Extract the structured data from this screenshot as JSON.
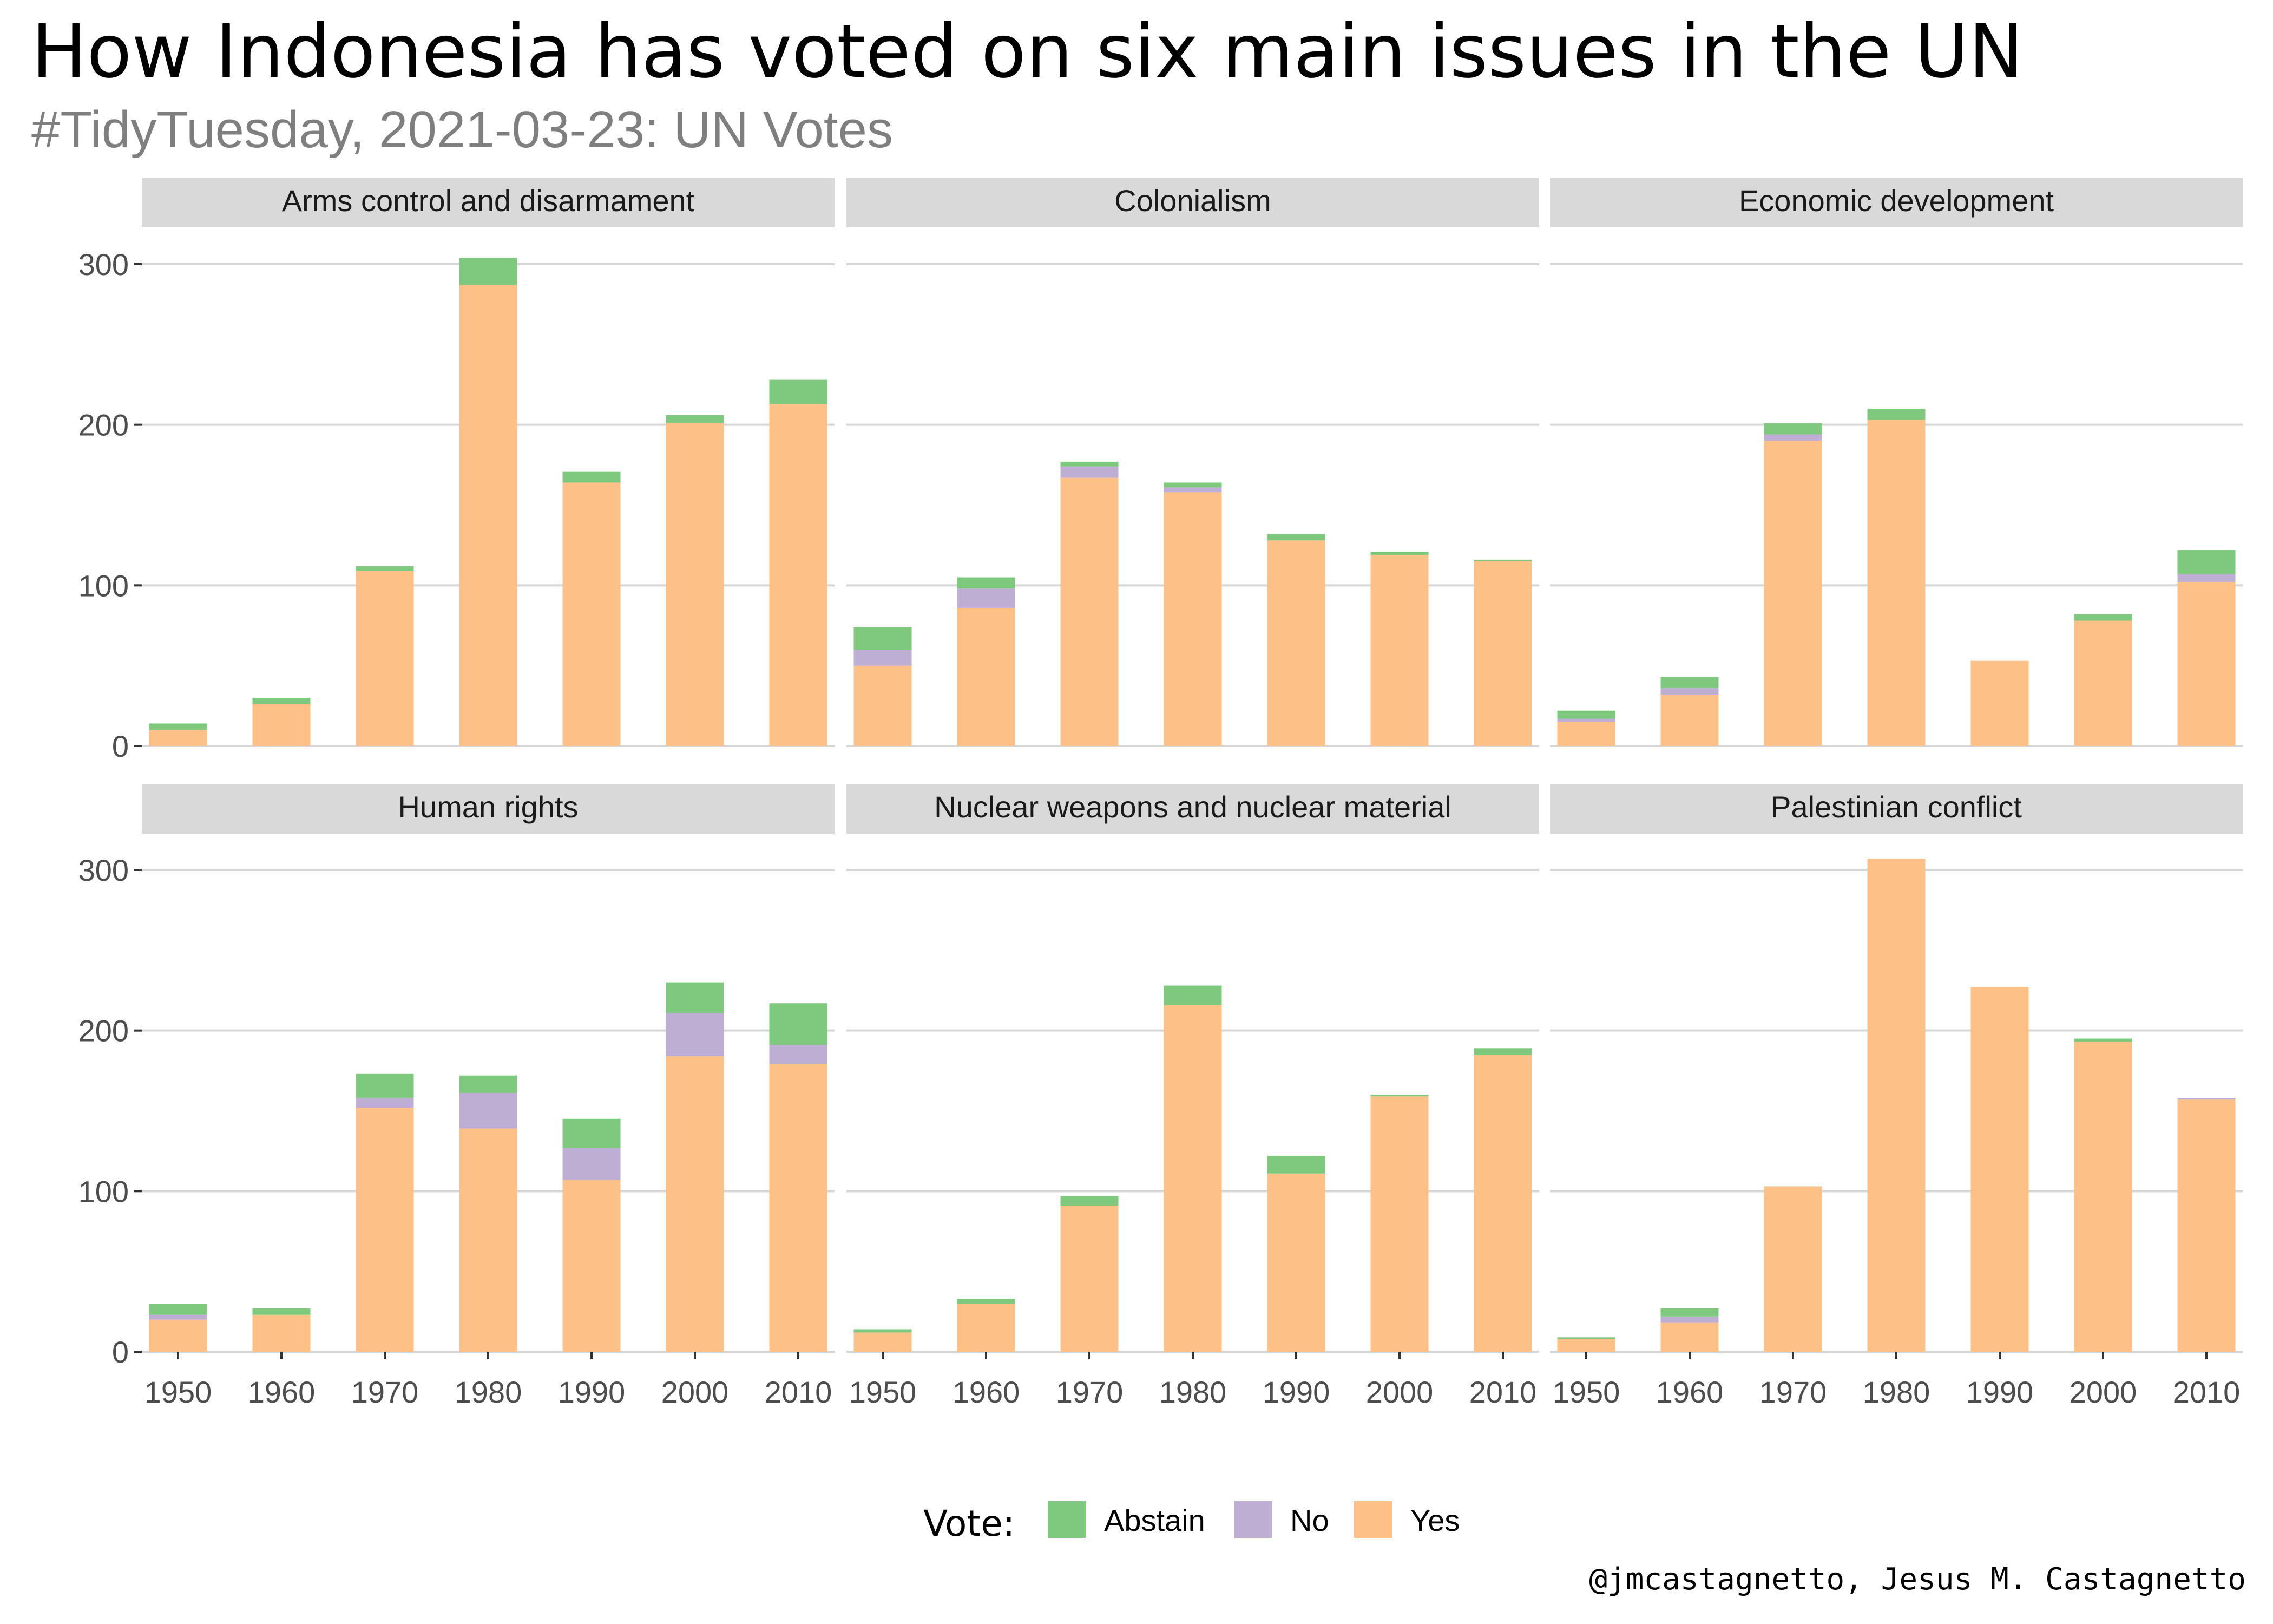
{
  "title": "How Indonesia has voted on six main issues in the UN",
  "subtitle": "#TidyTuesday, 2021-03-23: UN Votes",
  "caption": "@jmcastagnetto, Jesus M. Castagnetto",
  "legend": {
    "title": "Vote:",
    "items": [
      {
        "name": "Abstain",
        "color": "#7fc97f"
      },
      {
        "name": "No",
        "color": "#beaed4"
      },
      {
        "name": "Yes",
        "color": "#fdc086"
      }
    ]
  },
  "chart_data": {
    "type": "bar",
    "stacked": true,
    "categories": [
      "1950",
      "1960",
      "1970",
      "1980",
      "1990",
      "2000",
      "2010"
    ],
    "ylim": [
      0,
      300
    ],
    "yticks": [
      0,
      100,
      200,
      300
    ],
    "grid": true,
    "legend_position": "bottom",
    "panels": [
      {
        "title": "Arms control and disarmament",
        "series": [
          {
            "name": "Yes",
            "values": [
              10,
              26,
              109,
              287,
              164,
              201,
              213
            ]
          },
          {
            "name": "No",
            "values": [
              0,
              0,
              0,
              0,
              0,
              0,
              0
            ]
          },
          {
            "name": "Abstain",
            "values": [
              4,
              4,
              3,
              17,
              7,
              5,
              15
            ]
          }
        ]
      },
      {
        "title": "Colonialism",
        "series": [
          {
            "name": "Yes",
            "values": [
              50,
              86,
              167,
              158,
              128,
              119,
              115
            ]
          },
          {
            "name": "No",
            "values": [
              10,
              12,
              7,
              3,
              0,
              0,
              0
            ]
          },
          {
            "name": "Abstain",
            "values": [
              14,
              7,
              3,
              3,
              4,
              2,
              1
            ]
          }
        ]
      },
      {
        "title": "Economic development",
        "series": [
          {
            "name": "Yes",
            "values": [
              15,
              32,
              190,
              203,
              53,
              78,
              102
            ]
          },
          {
            "name": "No",
            "values": [
              2,
              4,
              4,
              0,
              0,
              0,
              5
            ]
          },
          {
            "name": "Abstain",
            "values": [
              5,
              7,
              7,
              7,
              0,
              4,
              15
            ]
          }
        ]
      },
      {
        "title": "Human rights",
        "series": [
          {
            "name": "Yes",
            "values": [
              20,
              23,
              152,
              139,
              107,
              184,
              179
            ]
          },
          {
            "name": "No",
            "values": [
              3,
              0,
              6,
              22,
              20,
              27,
              12
            ]
          },
          {
            "name": "Abstain",
            "values": [
              7,
              4,
              15,
              11,
              18,
              19,
              26
            ]
          }
        ]
      },
      {
        "title": "Nuclear weapons and nuclear material",
        "series": [
          {
            "name": "Yes",
            "values": [
              12,
              30,
              91,
              216,
              111,
              159,
              185
            ]
          },
          {
            "name": "No",
            "values": [
              0,
              0,
              0,
              0,
              0,
              0,
              0
            ]
          },
          {
            "name": "Abstain",
            "values": [
              2,
              3,
              6,
              12,
              11,
              1,
              4
            ]
          }
        ]
      },
      {
        "title": "Palestinian conflict",
        "series": [
          {
            "name": "Yes",
            "values": [
              8,
              18,
              103,
              307,
              227,
              193,
              157
            ]
          },
          {
            "name": "No",
            "values": [
              0,
              4,
              0,
              0,
              0,
              0,
              1
            ]
          },
          {
            "name": "Abstain",
            "values": [
              1,
              5,
              0,
              0,
              0,
              2,
              0
            ]
          }
        ]
      }
    ]
  }
}
